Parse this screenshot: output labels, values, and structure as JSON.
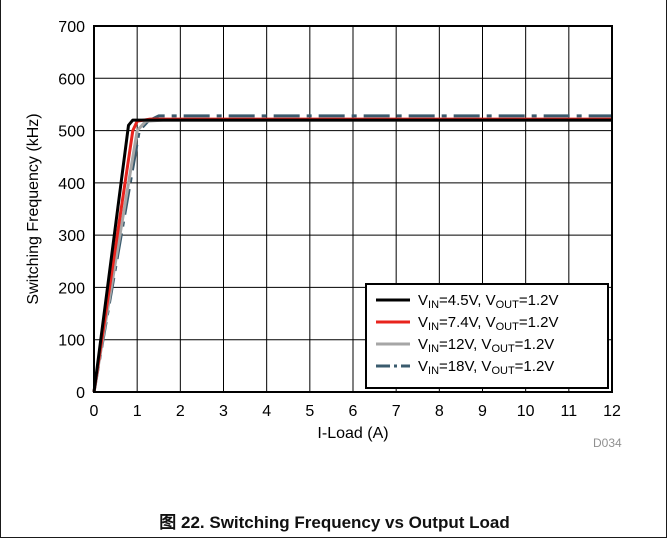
{
  "chart_data": {
    "type": "line",
    "xlabel": "I-Load (A)",
    "ylabel": "Switching Frequency (kHz)",
    "xlim": [
      0,
      12
    ],
    "ylim": [
      0,
      700
    ],
    "xticks": [
      "0",
      "1",
      "2",
      "3",
      "4",
      "5",
      "6",
      "7",
      "8",
      "9",
      "10",
      "11",
      "12"
    ],
    "yticks": [
      "0",
      "100",
      "200",
      "300",
      "400",
      "500",
      "600",
      "700"
    ],
    "grid": true,
    "legend_position": "bottom-right",
    "series": [
      {
        "name": "VIN=4.5V, VOUT=1.2V",
        "legend": {
          "a": "V",
          "as": "IN",
          "b": "=4.5V, V",
          "bs": "OUT",
          "c": "=1.2V"
        },
        "color": "#000000",
        "style": "solid",
        "x": [
          0,
          0.8,
          0.9,
          1.2,
          12
        ],
        "y": [
          0,
          510,
          520,
          520,
          520
        ]
      },
      {
        "name": "VIN=7.4V, VOUT=1.2V",
        "legend": {
          "a": "V",
          "as": "IN",
          "b": "=7.4V, V",
          "bs": "OUT",
          "c": "=1.2V"
        },
        "color": "#e8231d",
        "style": "solid",
        "x": [
          0,
          0.9,
          1.0,
          1.3,
          12
        ],
        "y": [
          0,
          500,
          518,
          522,
          522
        ]
      },
      {
        "name": "VIN=12V, VOUT=1.2V",
        "legend": {
          "a": "V",
          "as": "IN",
          "b": "=12V, V",
          "bs": "OUT",
          "c": "=1.2V"
        },
        "color": "#a6a6a6",
        "style": "solid",
        "x": [
          0,
          1.0,
          1.2,
          1.6,
          12
        ],
        "y": [
          0,
          500,
          518,
          520,
          520
        ]
      },
      {
        "name": "VIN=18V, VOUT=1.2V",
        "legend": {
          "a": "V",
          "as": "IN",
          "b": "=18V, V",
          "bs": "OUT",
          "c": "=1.2V"
        },
        "color": "#3a5b6e",
        "style": "dashdot",
        "x": [
          0,
          1.05,
          1.25,
          1.5,
          12
        ],
        "y": [
          0,
          500,
          518,
          528,
          528
        ]
      }
    ]
  },
  "figure_id": "D034",
  "caption": "图 22. Switching Frequency vs Output Load"
}
